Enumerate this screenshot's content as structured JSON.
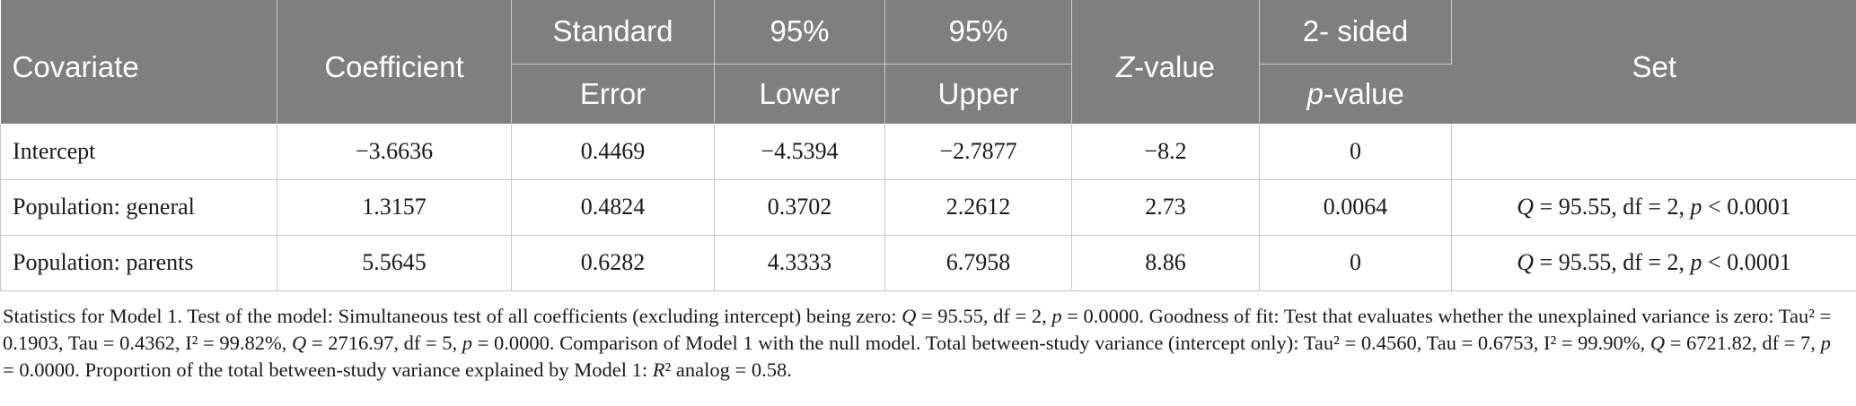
{
  "table": {
    "header_row1": [
      "Covariate",
      "Coefficient",
      "Standard",
      "95%",
      "95%",
      "-value",
      "2- sided",
      "Set"
    ],
    "header_z_prefix": "Z",
    "header_row2": [
      "Error",
      "Lower",
      "Upper",
      "-value"
    ],
    "header_p_prefix": "p",
    "rows": [
      {
        "covariate": "Intercept",
        "coefficient": "−3.6636",
        "se": "0.4469",
        "lower": "−4.5394",
        "upper": "−2.7877",
        "z": "−8.2",
        "p": "0",
        "set": ""
      },
      {
        "covariate": "Population: general",
        "coefficient": "1.3157",
        "se": "0.4824",
        "lower": "0.3702",
        "upper": "2.2612",
        "z": "2.73",
        "p": "0.0064",
        "set": "Q = 95.55, df = 2, p < 0.0001"
      },
      {
        "covariate": "Population: parents",
        "coefficient": "5.5645",
        "se": "0.6282",
        "lower": "4.3333",
        "upper": "6.7958",
        "z": "8.86",
        "p": "0",
        "set": "Q = 95.55, df = 2, p < 0.0001"
      }
    ]
  },
  "footnote": "Statistics for Model 1. Test of the model: Simultaneous test of all coefficients (excluding intercept) being zero: Q = 95.55, df = 2, p = 0.0000. Goodness of fit: Test that evaluates whether the unexplained variance is zero: Tau² = 0.1903, Tau = 0.4362, I² = 99.82%, Q = 2716.97, df = 5, p = 0.0000. Comparison of Model 1 with the null model. Total between-study variance (intercept only): Tau² = 0.4560, Tau = 0.6753, I² = 99.90%, Q = 6721.82, df = 7, p = 0.0000. Proportion of the total between-study variance explained by Model 1: R² analog = 0.58."
}
